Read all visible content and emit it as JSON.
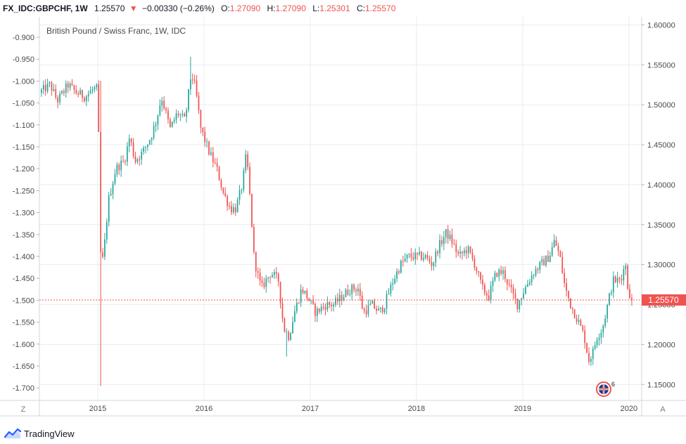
{
  "header": {
    "symbol": "FX_IDC:GBPCHF, 1W",
    "last": "1.25570",
    "change_arrow": "▼",
    "change": "−0.00330 (−0.26%)",
    "o_label": "O:",
    "o_value": "1.27090",
    "h_label": "H:",
    "h_value": "1.27090",
    "l_label": "L:",
    "l_value": "1.25301",
    "c_label": "C:",
    "c_value": "1.25570"
  },
  "chart_title": "British Pound / Swiss Franc, 1W, IDC",
  "price_label": "1.25570",
  "left_axis_button": "Z",
  "right_axis_button": "A",
  "event_badge": "6",
  "footer_logo": "TradingView",
  "colors": {
    "up": "#26a69a",
    "down": "#ef5350",
    "grid": "#e9ecf1",
    "axis_text": "#4a4a4a",
    "price_line": "#ef5350"
  },
  "chart_data": {
    "type": "candlestick",
    "title": "British Pound / Swiss Franc, 1W, IDC",
    "right_axis": {
      "ticks": [
        "1.60000",
        "1.55000",
        "1.50000",
        "1.45000",
        "1.40000",
        "1.35000",
        "1.30000",
        "1.25000",
        "1.20000",
        "1.15000"
      ],
      "range": [
        1.13,
        1.61
      ]
    },
    "left_axis": {
      "ticks": [
        "-0.900",
        "-0.950",
        "-1.000",
        "-1.050",
        "-1.100",
        "-1.150",
        "-1.200",
        "-1.250",
        "-1.300",
        "-1.350",
        "-1.400",
        "-1.450",
        "-1.500",
        "-1.550",
        "-1.600",
        "-1.650",
        "-1.700"
      ]
    },
    "x_ticks": [
      "2015",
      "2016",
      "2017",
      "2018",
      "2019",
      "2020"
    ],
    "x_range": [
      2014.45,
      2020.12
    ],
    "last_price": 1.2557,
    "key_points": [
      {
        "t": 2014.45,
        "v": 1.515
      },
      {
        "t": 2014.55,
        "v": 1.525
      },
      {
        "t": 2014.62,
        "v": 1.505
      },
      {
        "t": 2014.72,
        "v": 1.525
      },
      {
        "t": 2014.8,
        "v": 1.515
      },
      {
        "t": 2014.88,
        "v": 1.51
      },
      {
        "t": 2014.96,
        "v": 1.52
      },
      {
        "t": 2015.0,
        "v": 1.52
      },
      {
        "t": 2015.03,
        "v": 1.29
      },
      {
        "t": 2015.06,
        "v": 1.32
      },
      {
        "t": 2015.1,
        "v": 1.38
      },
      {
        "t": 2015.17,
        "v": 1.42
      },
      {
        "t": 2015.25,
        "v": 1.43
      },
      {
        "t": 2015.3,
        "v": 1.46
      },
      {
        "t": 2015.35,
        "v": 1.43
      },
      {
        "t": 2015.42,
        "v": 1.44
      },
      {
        "t": 2015.5,
        "v": 1.46
      },
      {
        "t": 2015.55,
        "v": 1.48
      },
      {
        "t": 2015.6,
        "v": 1.51
      },
      {
        "t": 2015.68,
        "v": 1.47
      },
      {
        "t": 2015.75,
        "v": 1.49
      },
      {
        "t": 2015.82,
        "v": 1.48
      },
      {
        "t": 2015.88,
        "v": 1.54
      },
      {
        "t": 2015.92,
        "v": 1.52
      },
      {
        "t": 2015.97,
        "v": 1.47
      },
      {
        "t": 2016.05,
        "v": 1.44
      },
      {
        "t": 2016.12,
        "v": 1.42
      },
      {
        "t": 2016.18,
        "v": 1.39
      },
      {
        "t": 2016.25,
        "v": 1.37
      },
      {
        "t": 2016.3,
        "v": 1.37
      },
      {
        "t": 2016.36,
        "v": 1.4
      },
      {
        "t": 2016.4,
        "v": 1.44
      },
      {
        "t": 2016.44,
        "v": 1.37
      },
      {
        "t": 2016.47,
        "v": 1.31
      },
      {
        "t": 2016.5,
        "v": 1.29
      },
      {
        "t": 2016.54,
        "v": 1.27
      },
      {
        "t": 2016.58,
        "v": 1.28
      },
      {
        "t": 2016.63,
        "v": 1.29
      },
      {
        "t": 2016.7,
        "v": 1.28
      },
      {
        "t": 2016.75,
        "v": 1.22
      },
      {
        "t": 2016.8,
        "v": 1.21
      },
      {
        "t": 2016.85,
        "v": 1.24
      },
      {
        "t": 2016.92,
        "v": 1.27
      },
      {
        "t": 2016.97,
        "v": 1.26
      },
      {
        "t": 2017.05,
        "v": 1.24
      },
      {
        "t": 2017.15,
        "v": 1.25
      },
      {
        "t": 2017.22,
        "v": 1.25
      },
      {
        "t": 2017.3,
        "v": 1.26
      },
      {
        "t": 2017.38,
        "v": 1.27
      },
      {
        "t": 2017.45,
        "v": 1.27
      },
      {
        "t": 2017.5,
        "v": 1.24
      },
      {
        "t": 2017.58,
        "v": 1.25
      },
      {
        "t": 2017.65,
        "v": 1.24
      },
      {
        "t": 2017.7,
        "v": 1.25
      },
      {
        "t": 2017.78,
        "v": 1.28
      },
      {
        "t": 2017.85,
        "v": 1.3
      },
      {
        "t": 2017.92,
        "v": 1.31
      },
      {
        "t": 2018.0,
        "v": 1.31
      },
      {
        "t": 2018.08,
        "v": 1.31
      },
      {
        "t": 2018.15,
        "v": 1.3
      },
      {
        "t": 2018.2,
        "v": 1.32
      },
      {
        "t": 2018.28,
        "v": 1.34
      },
      {
        "t": 2018.33,
        "v": 1.33
      },
      {
        "t": 2018.4,
        "v": 1.31
      },
      {
        "t": 2018.48,
        "v": 1.32
      },
      {
        "t": 2018.55,
        "v": 1.3
      },
      {
        "t": 2018.62,
        "v": 1.27
      },
      {
        "t": 2018.68,
        "v": 1.26
      },
      {
        "t": 2018.75,
        "v": 1.29
      },
      {
        "t": 2018.82,
        "v": 1.29
      },
      {
        "t": 2018.88,
        "v": 1.27
      },
      {
        "t": 2018.95,
        "v": 1.25
      },
      {
        "t": 2019.02,
        "v": 1.27
      },
      {
        "t": 2019.1,
        "v": 1.29
      },
      {
        "t": 2019.17,
        "v": 1.3
      },
      {
        "t": 2019.25,
        "v": 1.31
      },
      {
        "t": 2019.3,
        "v": 1.33
      },
      {
        "t": 2019.35,
        "v": 1.31
      },
      {
        "t": 2019.4,
        "v": 1.27
      },
      {
        "t": 2019.45,
        "v": 1.25
      },
      {
        "t": 2019.52,
        "v": 1.23
      },
      {
        "t": 2019.58,
        "v": 1.21
      },
      {
        "t": 2019.62,
        "v": 1.18
      },
      {
        "t": 2019.66,
        "v": 1.19
      },
      {
        "t": 2019.7,
        "v": 1.21
      },
      {
        "t": 2019.75,
        "v": 1.22
      },
      {
        "t": 2019.8,
        "v": 1.25
      },
      {
        "t": 2019.85,
        "v": 1.28
      },
      {
        "t": 2019.89,
        "v": 1.28
      },
      {
        "t": 2019.93,
        "v": 1.28
      },
      {
        "t": 2019.96,
        "v": 1.31
      },
      {
        "t": 2019.99,
        "v": 1.27
      },
      {
        "t": 2020.03,
        "v": 1.2557
      }
    ]
  }
}
